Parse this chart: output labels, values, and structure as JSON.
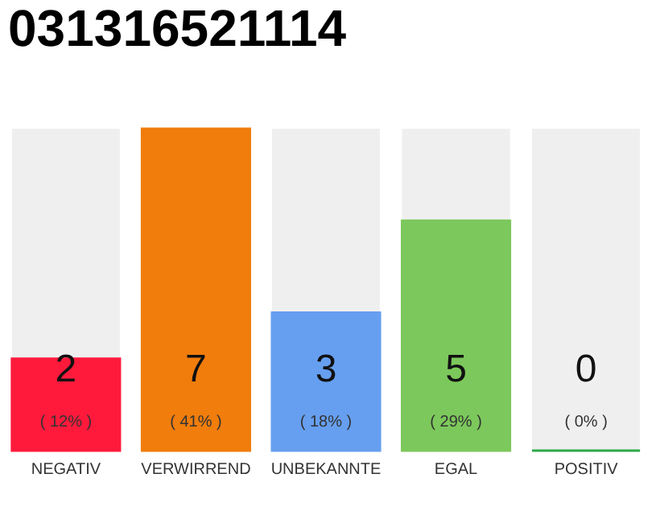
{
  "chart_data": {
    "type": "bar",
    "title": "031316521114",
    "categories": [
      "NEGATIV",
      "VERWIRREND",
      "UNBEKANNTE",
      "EGAL",
      "POSITIV"
    ],
    "values": [
      2,
      7,
      3,
      5,
      0
    ],
    "colors": [
      "#ff1a3c",
      "#f07d0c",
      "#669ff0",
      "#7cc85c",
      "#2ea84a"
    ],
    "value_labels": [
      "2",
      "7",
      "3",
      "5",
      "0"
    ],
    "annotations": [
      "( 12% )",
      "( 41% )",
      "( 18% )",
      "( 29% )",
      "( 0% )"
    ]
  }
}
